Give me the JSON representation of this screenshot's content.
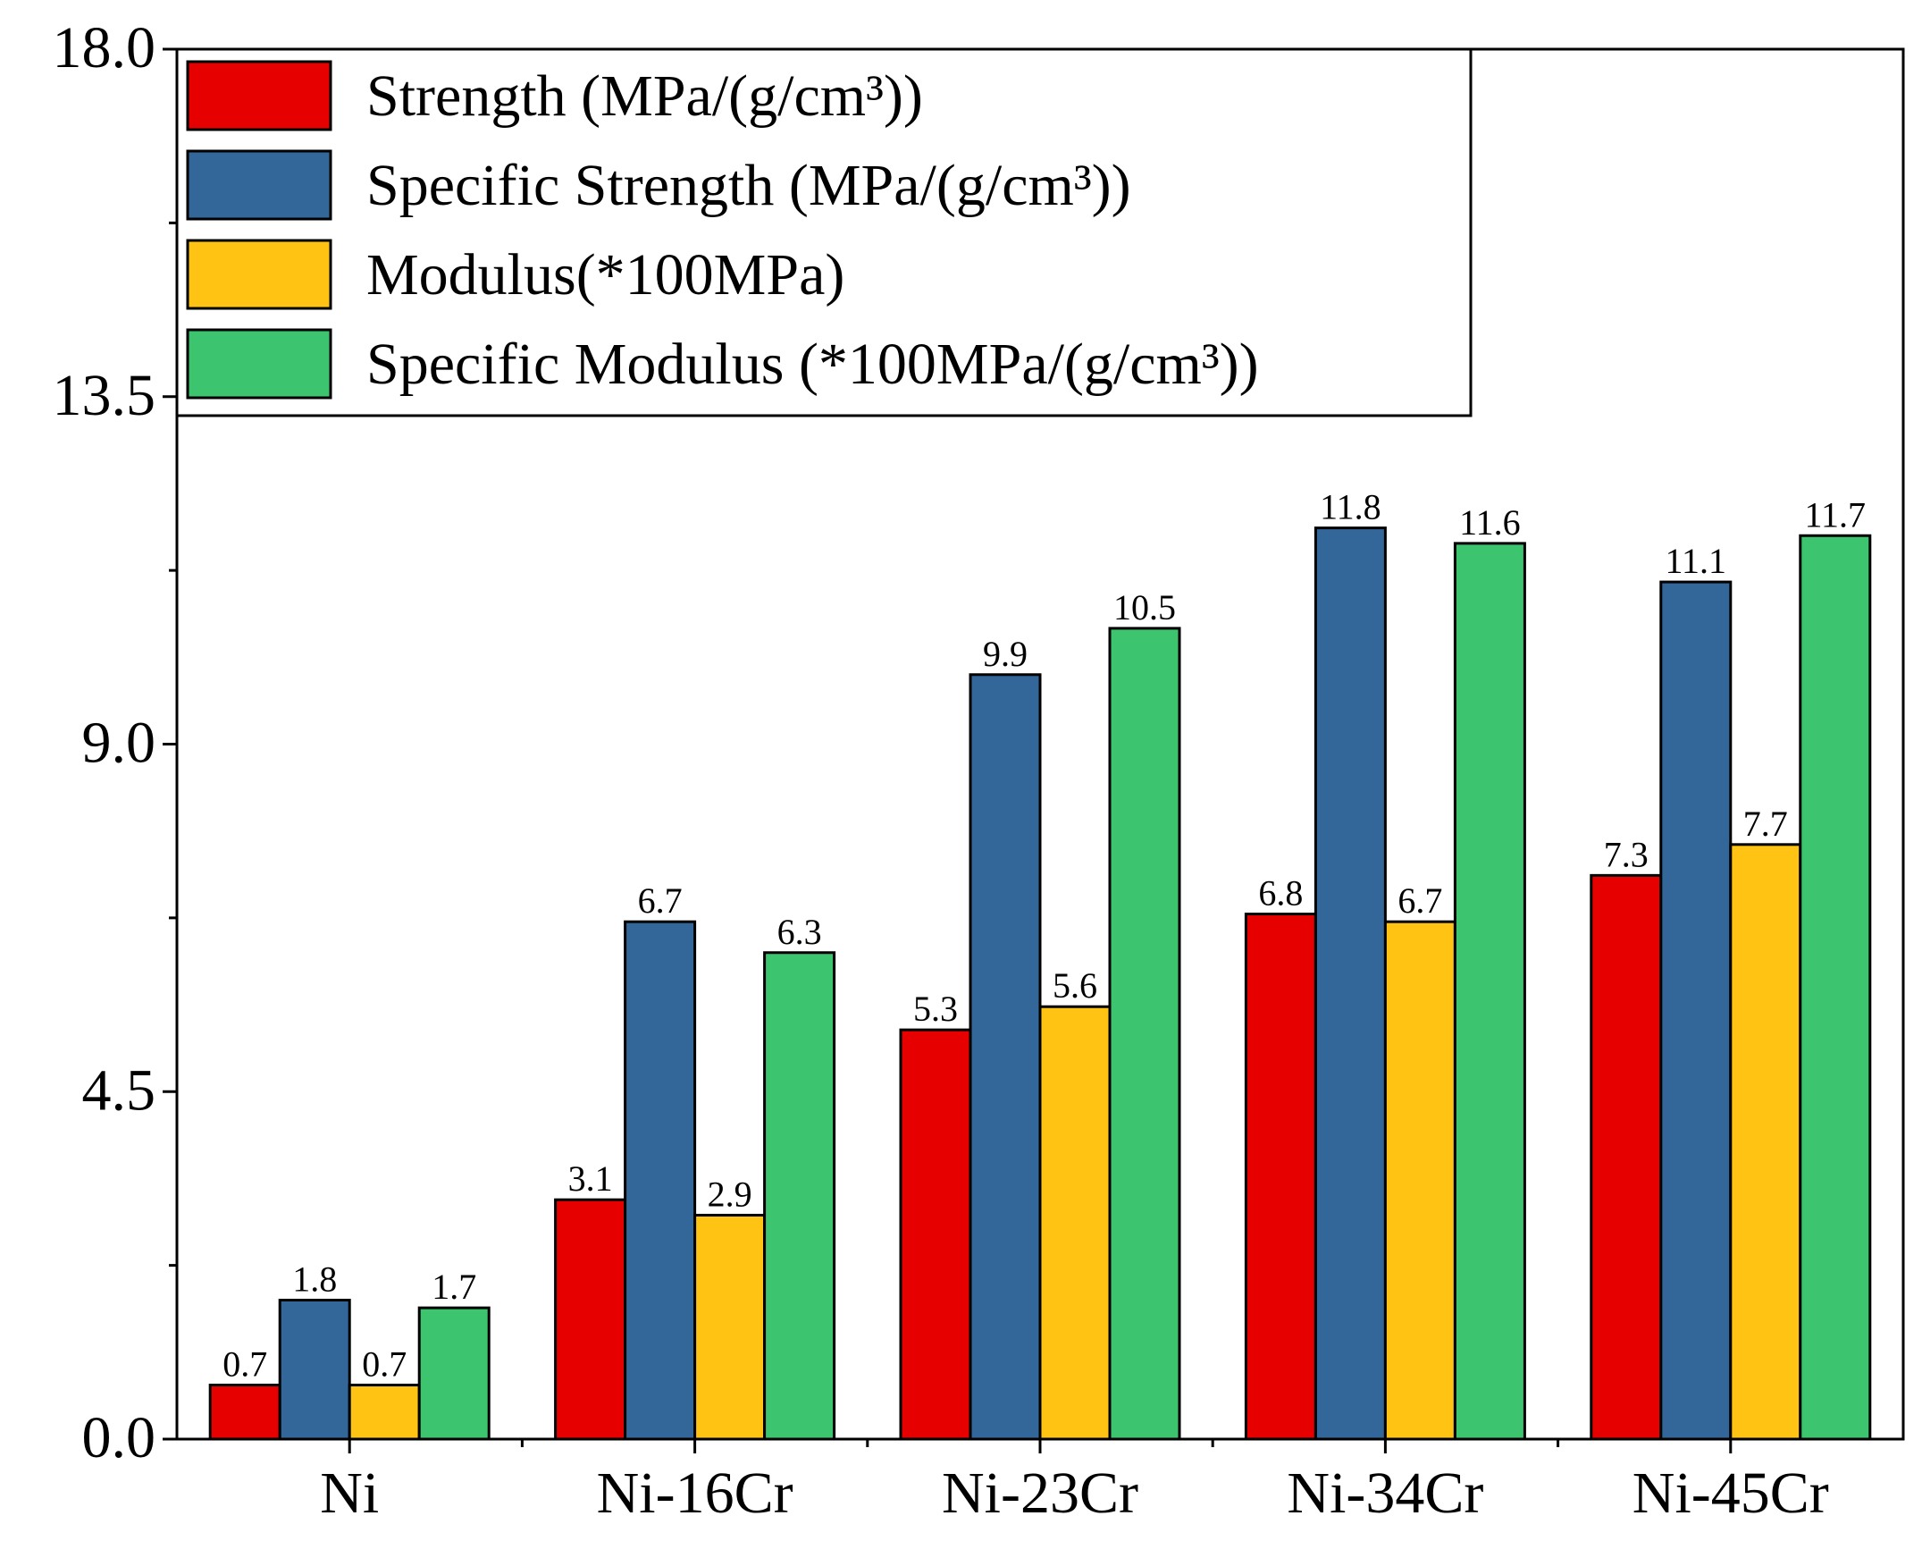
{
  "chart_data": {
    "type": "bar",
    "categories": [
      "Ni",
      "Ni-16Cr",
      "Ni-23Cr",
      "Ni-34Cr",
      "Ni-45Cr"
    ],
    "series": [
      {
        "name": "Strength (MPa/(g/cm³))",
        "color": "#e60000",
        "values": [
          0.7,
          3.1,
          5.3,
          6.8,
          7.3
        ]
      },
      {
        "name": "Specific Strength (MPa/(g/cm³))",
        "color": "#336699",
        "values": [
          1.8,
          6.7,
          9.9,
          11.8,
          11.1
        ]
      },
      {
        "name": "Modulus(*100MPa)",
        "color": "#ffc413",
        "values": [
          0.7,
          2.9,
          5.6,
          6.7,
          7.7
        ]
      },
      {
        "name": "Specific Modulus (*100MPa/(g/cm³))",
        "color": "#3cc46e",
        "values": [
          1.7,
          6.3,
          10.5,
          11.6,
          11.7
        ]
      }
    ],
    "ylim": [
      0,
      18
    ],
    "yticks": [
      "0.0",
      "4.5",
      "9.0",
      "13.5",
      "18.0"
    ],
    "legend_position": "top-left",
    "grid": false
  }
}
